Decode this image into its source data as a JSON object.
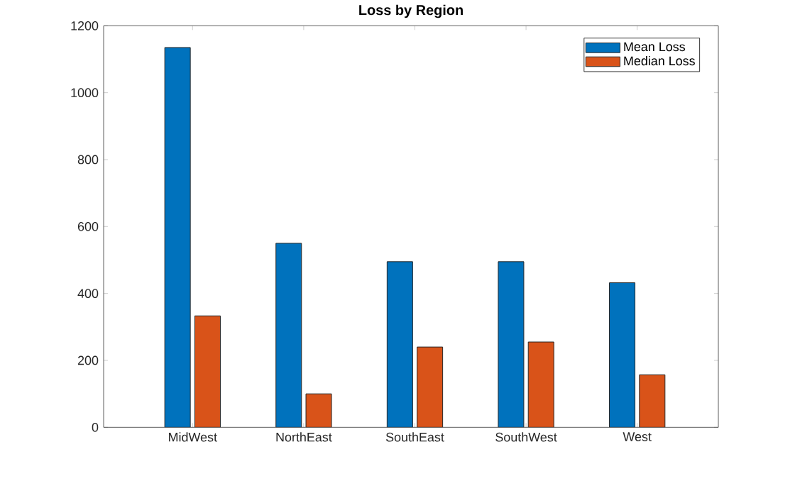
{
  "chart_data": {
    "type": "bar",
    "title": "Loss by Region",
    "categories": [
      "MidWest",
      "NorthEast",
      "SouthEast",
      "SouthWest",
      "West"
    ],
    "series": [
      {
        "name": "Mean Loss",
        "color": "#0072bd",
        "values": [
          1135,
          550,
          495,
          495,
          432
        ]
      },
      {
        "name": "Median Loss",
        "color": "#d95319",
        "values": [
          333,
          100,
          240,
          255,
          157
        ]
      }
    ],
    "ylim": [
      0,
      1200
    ],
    "yticks": [
      0,
      200,
      400,
      600,
      800,
      1000,
      1200
    ],
    "legend": "top right",
    "grid": false
  }
}
